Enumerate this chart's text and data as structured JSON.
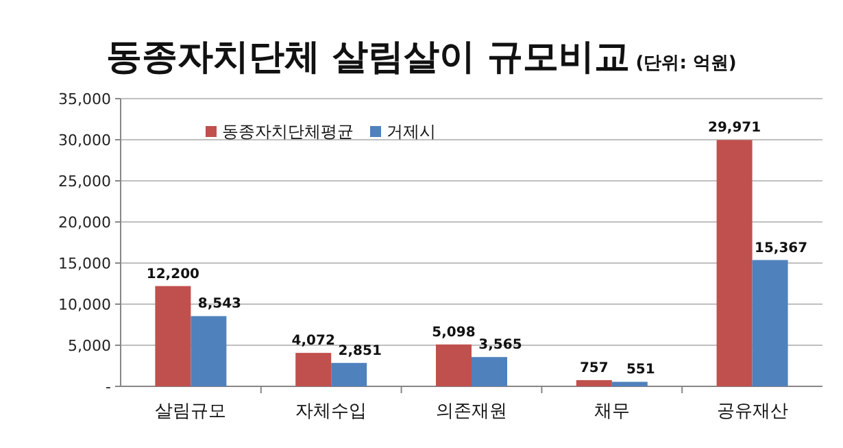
{
  "chart_data": {
    "type": "bar",
    "title": "동종자치단체 살림살이 규모비교",
    "subtitle": "(단위: 억원)",
    "categories": [
      "살림규모",
      "자체수입",
      "의존재원",
      "채무",
      "공유재산"
    ],
    "series": [
      {
        "name": "동종자치단체평균",
        "color": "#c0504d",
        "values": [
          12200,
          4072,
          5098,
          757,
          29971
        ],
        "value_labels": [
          "12,200",
          "4,072",
          "5,098",
          "757",
          "29,971"
        ]
      },
      {
        "name": "거제시",
        "color": "#4f81bd",
        "values": [
          8543,
          2851,
          3565,
          551,
          15367
        ],
        "value_labels": [
          "8,543",
          "2,851",
          "3,565",
          "551",
          "15,367"
        ]
      }
    ],
    "ylim": [
      0,
      35000
    ],
    "yticks": [
      {
        "value": 0,
        "label": "-"
      },
      {
        "value": 5000,
        "label": "5,000"
      },
      {
        "value": 10000,
        "label": "10,000"
      },
      {
        "value": 15000,
        "label": "15,000"
      },
      {
        "value": 20000,
        "label": "20,000"
      },
      {
        "value": 25000,
        "label": "25,000"
      },
      {
        "value": 30000,
        "label": "30,000"
      },
      {
        "value": 35000,
        "label": "35,000"
      }
    ],
    "grid": "y",
    "legend": "top left"
  }
}
